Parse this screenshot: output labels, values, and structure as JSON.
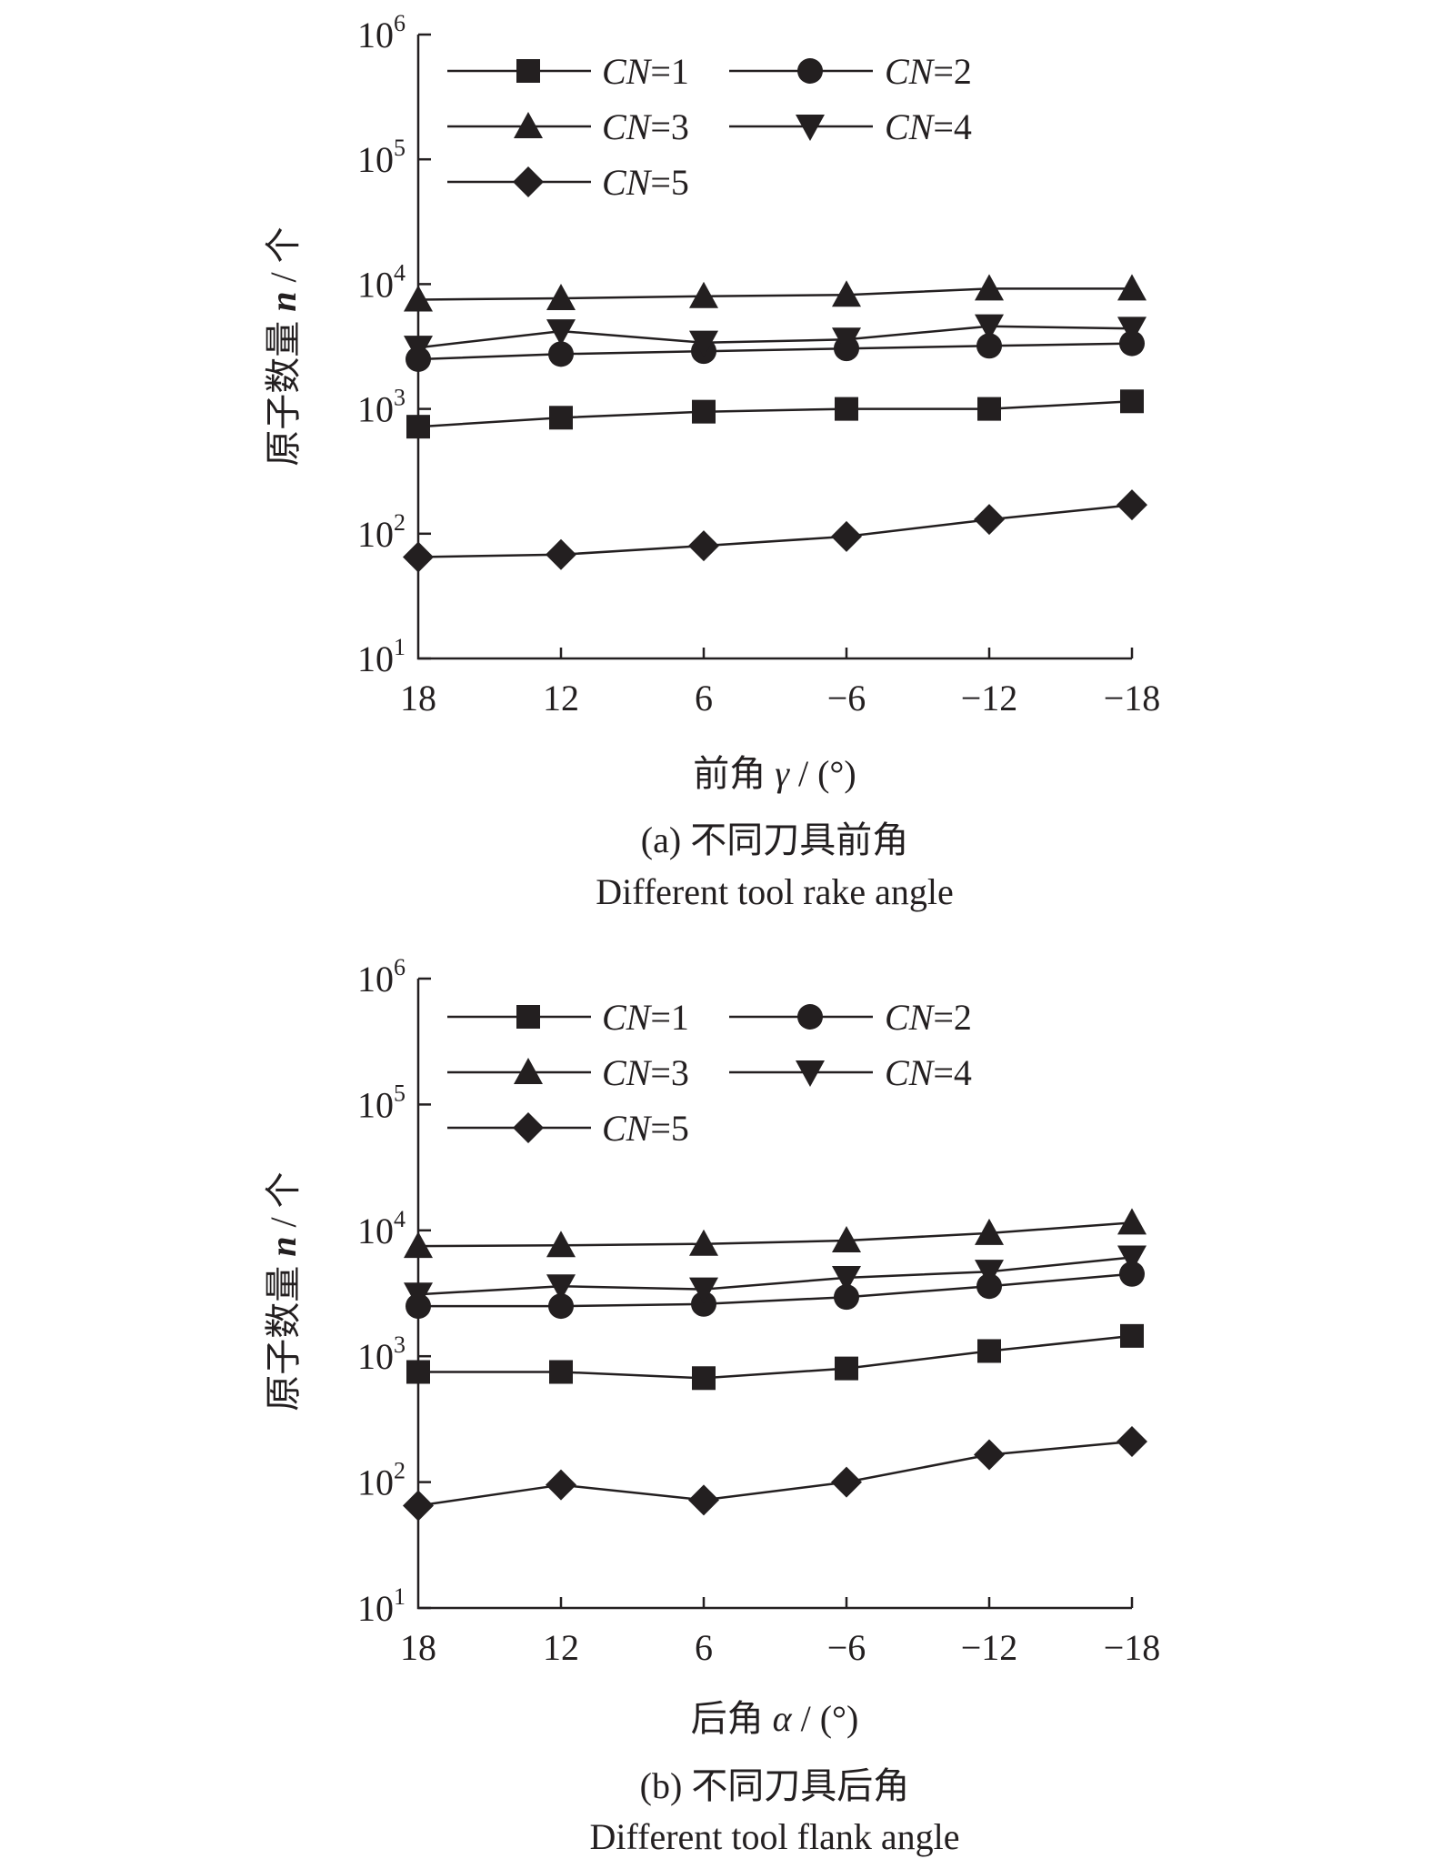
{
  "chart_data": [
    {
      "type": "line",
      "yscale": "log",
      "ylim": [
        10,
        1000000
      ],
      "categories": [
        "18",
        "12",
        "6",
        "−6",
        "−12",
        "−18"
      ],
      "y_ticks": [
        {
          "base": "10",
          "exp": "1"
        },
        {
          "base": "10",
          "exp": "2"
        },
        {
          "base": "10",
          "exp": "3"
        },
        {
          "base": "10",
          "exp": "4"
        },
        {
          "base": "10",
          "exp": "5"
        },
        {
          "base": "10",
          "exp": "6"
        }
      ],
      "ylabel": {
        "cn": "原子数量 ",
        "var": "n",
        "unit": " / 个"
      },
      "xlabel": {
        "cn": "前角 ",
        "var": "γ",
        "unit": " / (°)"
      },
      "caption_cn": "(a) 不同刀具前角",
      "caption_en": "Different tool rake angle",
      "legend_position": "top-left",
      "series": [
        {
          "name": "CN=1",
          "label_var": "CN",
          "label_val": "=1",
          "marker": "square",
          "values": [
            720,
            850,
            950,
            1000,
            1000,
            1150
          ]
        },
        {
          "name": "CN=2",
          "label_var": "CN",
          "label_val": "=2",
          "marker": "circle",
          "values": [
            2500,
            2750,
            2900,
            3050,
            3200,
            3350
          ]
        },
        {
          "name": "CN=3",
          "label_var": "CN",
          "label_val": "=3",
          "marker": "triangle-up",
          "values": [
            7500,
            7700,
            8000,
            8200,
            9200,
            9200
          ]
        },
        {
          "name": "CN=4",
          "label_var": "CN",
          "label_val": "=4",
          "marker": "triangle-down",
          "values": [
            3100,
            4200,
            3400,
            3600,
            4600,
            4400
          ]
        },
        {
          "name": "CN=5",
          "label_var": "CN",
          "label_val": "=5",
          "marker": "diamond",
          "values": [
            65,
            68,
            80,
            95,
            130,
            170
          ]
        }
      ]
    },
    {
      "type": "line",
      "yscale": "log",
      "ylim": [
        10,
        1000000
      ],
      "categories": [
        "18",
        "12",
        "6",
        "−6",
        "−12",
        "−18"
      ],
      "y_ticks": [
        {
          "base": "10",
          "exp": "1"
        },
        {
          "base": "10",
          "exp": "2"
        },
        {
          "base": "10",
          "exp": "3"
        },
        {
          "base": "10",
          "exp": "4"
        },
        {
          "base": "10",
          "exp": "5"
        },
        {
          "base": "10",
          "exp": "6"
        }
      ],
      "ylabel": {
        "cn": "原子数量 ",
        "var": "n",
        "unit": " / 个"
      },
      "xlabel": {
        "cn": "后角 ",
        "var": "α",
        "unit": " / (°)"
      },
      "caption_cn": "(b) 不同刀具后角",
      "caption_en": "Different tool flank angle",
      "legend_position": "top-left",
      "series": [
        {
          "name": "CN=1",
          "label_var": "CN",
          "label_val": "=1",
          "marker": "square",
          "values": [
            750,
            750,
            670,
            800,
            1100,
            1450
          ]
        },
        {
          "name": "CN=2",
          "label_var": "CN",
          "label_val": "=2",
          "marker": "circle",
          "values": [
            2500,
            2500,
            2600,
            2950,
            3600,
            4500
          ]
        },
        {
          "name": "CN=3",
          "label_var": "CN",
          "label_val": "=3",
          "marker": "triangle-up",
          "values": [
            7500,
            7600,
            7800,
            8300,
            9500,
            11500
          ]
        },
        {
          "name": "CN=4",
          "label_var": "CN",
          "label_val": "=4",
          "marker": "triangle-down",
          "values": [
            3100,
            3600,
            3400,
            4200,
            4700,
            6100
          ]
        },
        {
          "name": "CN=5",
          "label_var": "CN",
          "label_val": "=5",
          "marker": "diamond",
          "values": [
            65,
            95,
            72,
            100,
            165,
            210
          ]
        }
      ]
    }
  ]
}
